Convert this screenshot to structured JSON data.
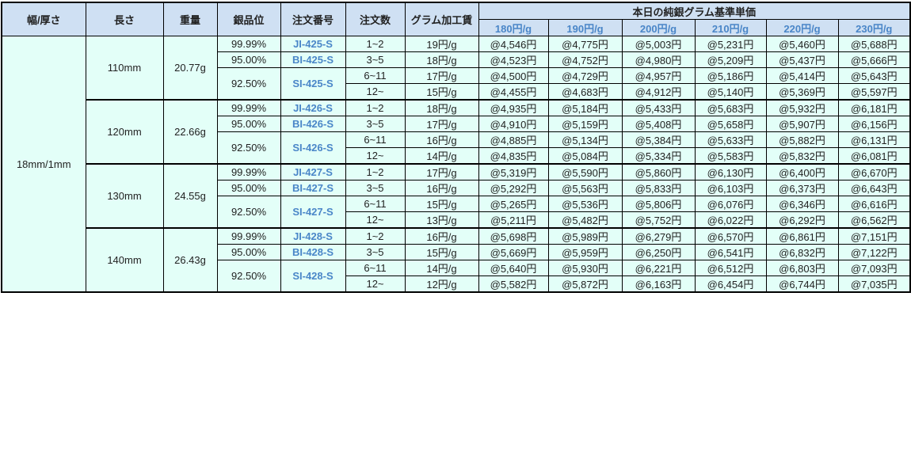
{
  "header": {
    "width_thickness": "幅/厚さ",
    "length": "長さ",
    "weight": "重量",
    "purity": "銀品位",
    "order_number": "注文番号",
    "quantity": "注文数",
    "processing_fee": "グラム加工賃",
    "base_price_title": "本日の純銀グラム基準単価",
    "base_prices": [
      "180円/g",
      "190円/g",
      "200円/g",
      "210円/g",
      "220円/g",
      "230円/g"
    ]
  },
  "width_thickness": "18mm/1mm",
  "groups": [
    {
      "length": "110mm",
      "weight": "20.77g",
      "products": [
        {
          "purity": "99.99%",
          "code": "JI-425-S"
        },
        {
          "purity": "95.00%",
          "code": "BI-425-S"
        },
        {
          "purity": "92.50%",
          "code": "SI-425-S"
        }
      ],
      "tiers": [
        {
          "qty": "1~2",
          "fee": "19円/g",
          "prices": [
            "@4,546円",
            "@4,775円",
            "@5,003円",
            "@5,231円",
            "@5,460円",
            "@5,688円"
          ]
        },
        {
          "qty": "3~5",
          "fee": "18円/g",
          "prices": [
            "@4,523円",
            "@4,752円",
            "@4,980円",
            "@5,209円",
            "@5,437円",
            "@5,666円"
          ]
        },
        {
          "qty": "6~11",
          "fee": "17円/g",
          "prices": [
            "@4,500円",
            "@4,729円",
            "@4,957円",
            "@5,186円",
            "@5,414円",
            "@5,643円"
          ]
        },
        {
          "qty": "12~",
          "fee": "15円/g",
          "prices": [
            "@4,455円",
            "@4,683円",
            "@4,912円",
            "@5,140円",
            "@5,369円",
            "@5,597円"
          ]
        }
      ]
    },
    {
      "length": "120mm",
      "weight": "22.66g",
      "products": [
        {
          "purity": "99.99%",
          "code": "JI-426-S"
        },
        {
          "purity": "95.00%",
          "code": "BI-426-S"
        },
        {
          "purity": "92.50%",
          "code": "SI-426-S"
        }
      ],
      "tiers": [
        {
          "qty": "1~2",
          "fee": "18円/g",
          "prices": [
            "@4,935円",
            "@5,184円",
            "@5,433円",
            "@5,683円",
            "@5,932円",
            "@6,181円"
          ]
        },
        {
          "qty": "3~5",
          "fee": "17円/g",
          "prices": [
            "@4,910円",
            "@5,159円",
            "@5,408円",
            "@5,658円",
            "@5,907円",
            "@6,156円"
          ]
        },
        {
          "qty": "6~11",
          "fee": "16円/g",
          "prices": [
            "@4,885円",
            "@5,134円",
            "@5,384円",
            "@5,633円",
            "@5,882円",
            "@6,131円"
          ]
        },
        {
          "qty": "12~",
          "fee": "14円/g",
          "prices": [
            "@4,835円",
            "@5,084円",
            "@5,334円",
            "@5,583円",
            "@5,832円",
            "@6,081円"
          ]
        }
      ]
    },
    {
      "length": "130mm",
      "weight": "24.55g",
      "products": [
        {
          "purity": "99.99%",
          "code": "JI-427-S"
        },
        {
          "purity": "95.00%",
          "code": "BI-427-S"
        },
        {
          "purity": "92.50%",
          "code": "SI-427-S"
        }
      ],
      "tiers": [
        {
          "qty": "1~2",
          "fee": "17円/g",
          "prices": [
            "@5,319円",
            "@5,590円",
            "@5,860円",
            "@6,130円",
            "@6,400円",
            "@6,670円"
          ]
        },
        {
          "qty": "3~5",
          "fee": "16円/g",
          "prices": [
            "@5,292円",
            "@5,563円",
            "@5,833円",
            "@6,103円",
            "@6,373円",
            "@6,643円"
          ]
        },
        {
          "qty": "6~11",
          "fee": "15円/g",
          "prices": [
            "@5,265円",
            "@5,536円",
            "@5,806円",
            "@6,076円",
            "@6,346円",
            "@6,616円"
          ]
        },
        {
          "qty": "12~",
          "fee": "13円/g",
          "prices": [
            "@5,211円",
            "@5,482円",
            "@5,752円",
            "@6,022円",
            "@6,292円",
            "@6,562円"
          ]
        }
      ]
    },
    {
      "length": "140mm",
      "weight": "26.43g",
      "products": [
        {
          "purity": "99.99%",
          "code": "JI-428-S"
        },
        {
          "purity": "95.00%",
          "code": "BI-428-S"
        },
        {
          "purity": "92.50%",
          "code": "SI-428-S"
        }
      ],
      "tiers": [
        {
          "qty": "1~2",
          "fee": "16円/g",
          "prices": [
            "@5,698円",
            "@5,989円",
            "@6,279円",
            "@6,570円",
            "@6,861円",
            "@7,151円"
          ]
        },
        {
          "qty": "3~5",
          "fee": "15円/g",
          "prices": [
            "@5,669円",
            "@5,959円",
            "@6,250円",
            "@6,541円",
            "@6,832円",
            "@7,122円"
          ]
        },
        {
          "qty": "6~11",
          "fee": "14円/g",
          "prices": [
            "@5,640円",
            "@5,930円",
            "@6,221円",
            "@6,512円",
            "@6,803円",
            "@7,093円"
          ]
        },
        {
          "qty": "12~",
          "fee": "12円/g",
          "prices": [
            "@5,582円",
            "@5,872円",
            "@6,163円",
            "@6,454円",
            "@6,744円",
            "@7,035円"
          ]
        }
      ]
    }
  ],
  "colors": {
    "header_bg": "#cfe0f3",
    "body_bg": "#e3fff8",
    "link_blue": "#4a86c8"
  }
}
